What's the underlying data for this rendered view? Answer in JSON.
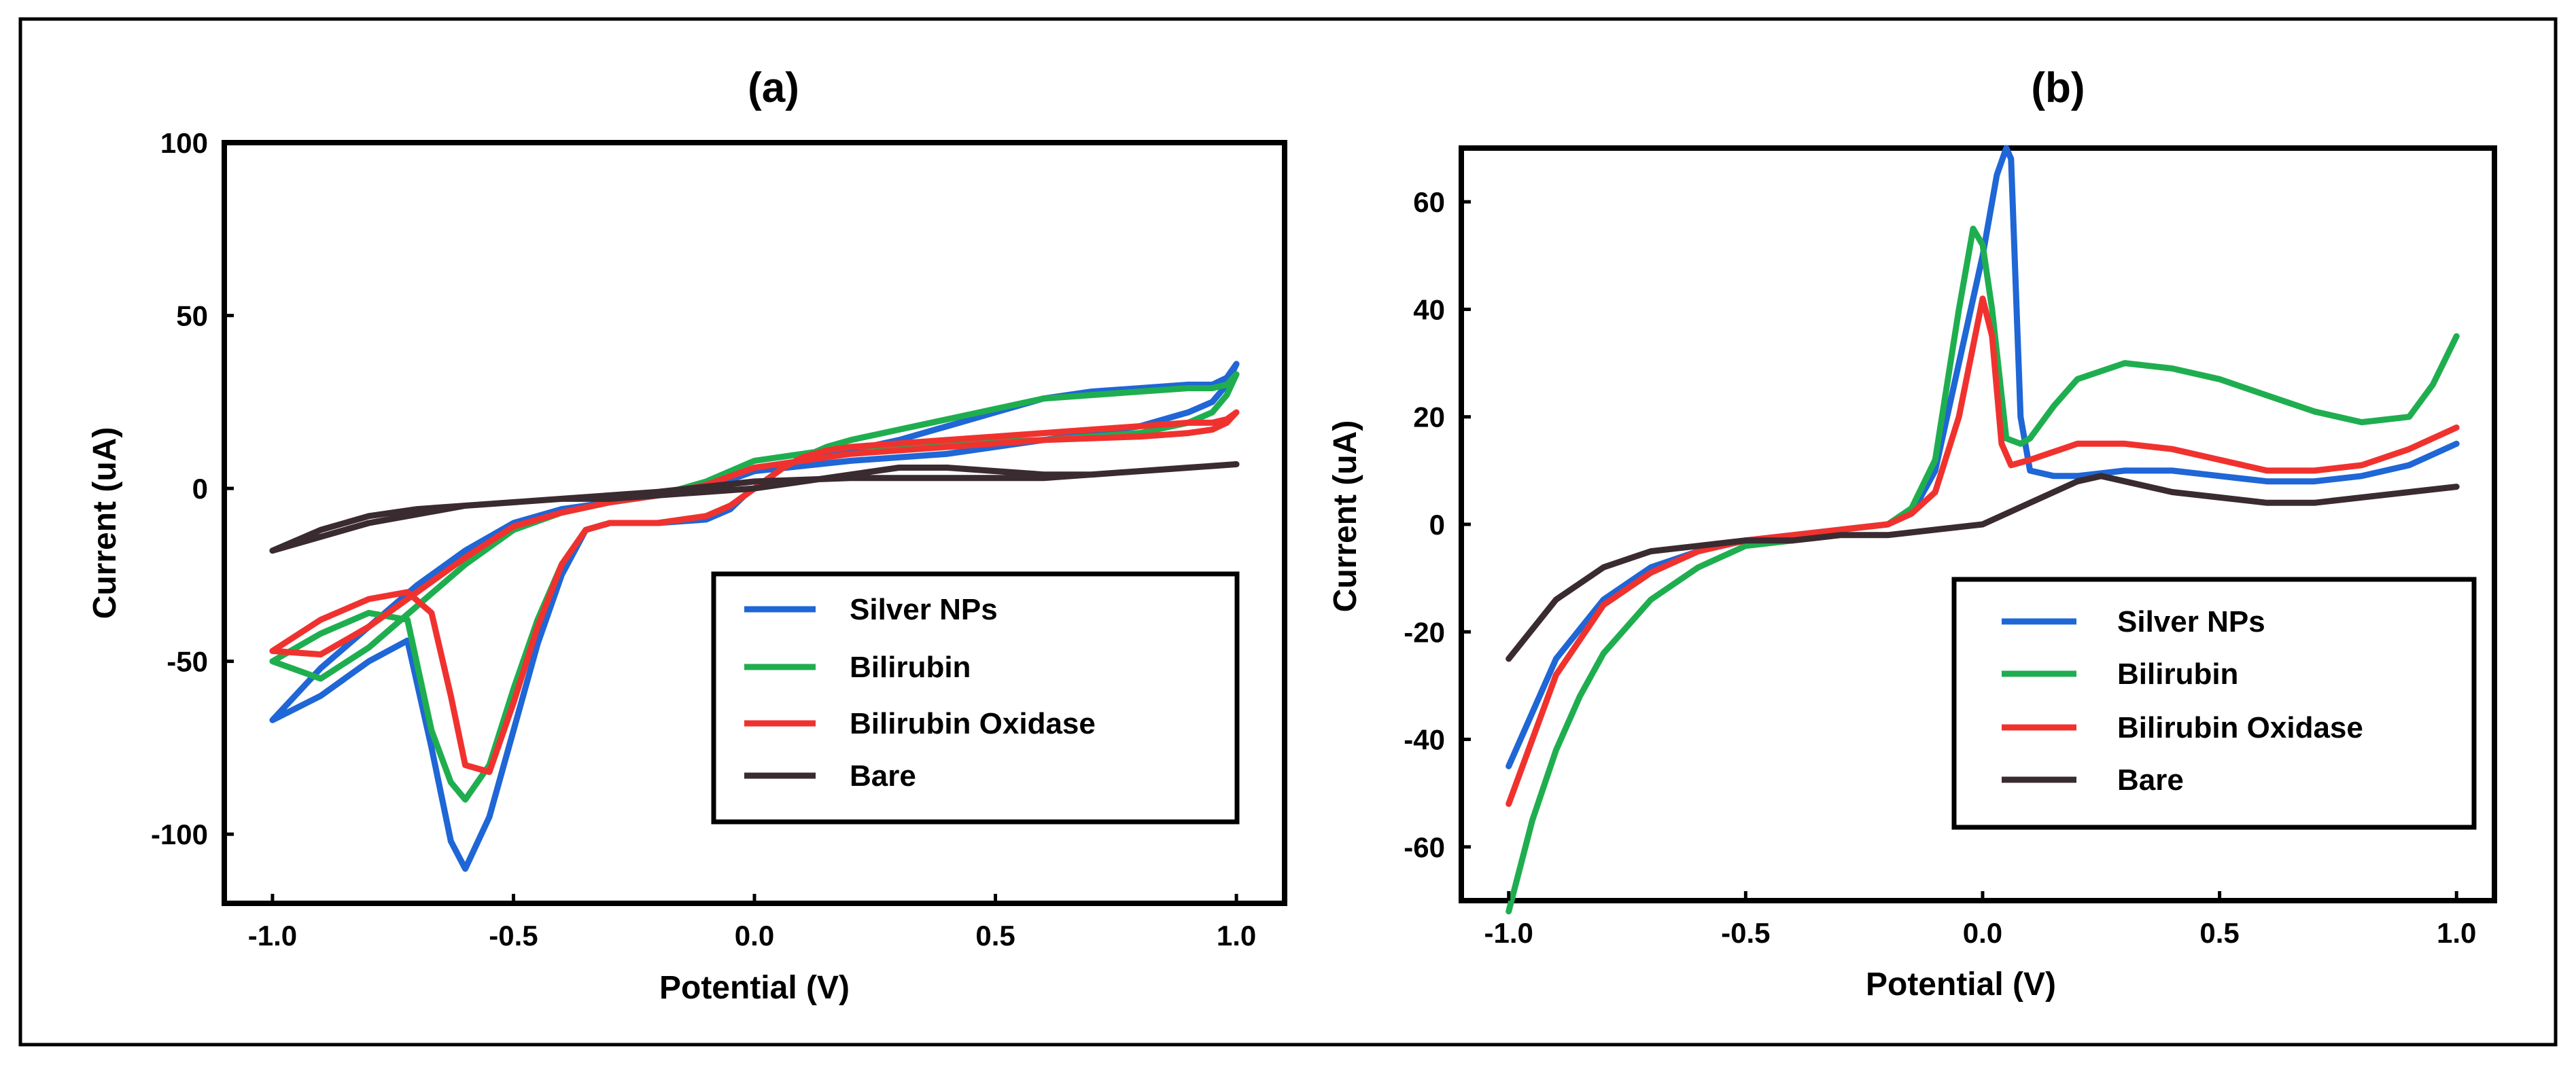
{
  "figure_border_color": "#000000",
  "chart_data": [
    {
      "type": "line",
      "panel": "a",
      "title": "(a)",
      "xlabel": "Potential (V)",
      "ylabel": "Current (uA)",
      "xlim": [
        -1.1,
        1.1
      ],
      "ylim": [
        -120,
        100
      ],
      "xticks": [
        -1.0,
        -0.5,
        0.0,
        0.5,
        1.0
      ],
      "xtick_labels": [
        "-1.0",
        "-0.5",
        "0.0",
        "0.5",
        "1.0"
      ],
      "yticks": [
        -100,
        -50,
        0,
        50,
        100
      ],
      "ytick_labels": [
        "-100",
        "-50",
        "0",
        "50",
        "100"
      ],
      "grid": false,
      "legend_position": "bottom-right",
      "series": [
        {
          "name": "Silver NPs",
          "color": "#1f66d6",
          "x": [
            -1.0,
            -0.9,
            -0.8,
            -0.72,
            -0.67,
            -0.63,
            -0.6,
            -0.55,
            -0.5,
            -0.45,
            -0.4,
            -0.35,
            -0.3,
            -0.2,
            -0.1,
            -0.05,
            -0.02,
            0.0,
            0.02,
            0.04,
            0.06,
            0.1,
            0.15,
            0.2,
            0.3,
            0.4,
            0.5,
            0.6,
            0.7,
            0.8,
            0.9,
            0.95,
            0.98,
            1.0,
            0.98,
            0.95,
            0.9,
            0.8,
            0.6,
            0.4,
            0.2,
            0.0,
            -0.1,
            -0.2,
            -0.3,
            -0.4,
            -0.5,
            -0.6,
            -0.7,
            -0.8,
            -0.9,
            -1.0
          ],
          "y": [
            -67,
            -60,
            -50,
            -44,
            -75,
            -102,
            -110,
            -95,
            -70,
            -45,
            -25,
            -12,
            -10,
            -10,
            -9,
            -6,
            -2,
            0,
            2,
            4,
            6,
            8,
            10,
            11,
            14,
            18,
            22,
            26,
            28,
            29,
            30,
            30,
            32,
            36,
            30,
            25,
            22,
            18,
            14,
            10,
            8,
            5,
            0,
            -2,
            -4,
            -6,
            -10,
            -18,
            -28,
            -40,
            -52,
            -67
          ]
        },
        {
          "name": "Bilirubin",
          "color": "#1fae4f",
          "x": [
            -1.0,
            -0.9,
            -0.8,
            -0.72,
            -0.67,
            -0.63,
            -0.6,
            -0.55,
            -0.5,
            -0.45,
            -0.4,
            -0.35,
            -0.3,
            -0.2,
            -0.1,
            -0.05,
            -0.02,
            0.0,
            0.02,
            0.04,
            0.06,
            0.1,
            0.15,
            0.2,
            0.3,
            0.4,
            0.5,
            0.6,
            0.7,
            0.8,
            0.9,
            0.95,
            0.98,
            1.0,
            0.98,
            0.95,
            0.9,
            0.8,
            0.6,
            0.4,
            0.2,
            0.0,
            -0.1,
            -0.2,
            -0.3,
            -0.4,
            -0.5,
            -0.6,
            -0.7,
            -0.8,
            -0.9,
            -1.0
          ],
          "y": [
            -50,
            -42,
            -36,
            -38,
            -70,
            -85,
            -90,
            -80,
            -58,
            -38,
            -22,
            -12,
            -10,
            -10,
            -8,
            -5,
            -2,
            0,
            2,
            4,
            6,
            9,
            12,
            14,
            17,
            20,
            23,
            26,
            27,
            28,
            29,
            29,
            30,
            33,
            27,
            22,
            19,
            16,
            14,
            13,
            12,
            8,
            2,
            -2,
            -4,
            -7,
            -12,
            -22,
            -34,
            -46,
            -55,
            -50
          ]
        },
        {
          "name": "Bilirubin Oxidase",
          "color": "#f0322f",
          "x": [
            -1.0,
            -0.9,
            -0.8,
            -0.72,
            -0.67,
            -0.63,
            -0.6,
            -0.55,
            -0.5,
            -0.45,
            -0.4,
            -0.35,
            -0.3,
            -0.2,
            -0.1,
            -0.05,
            -0.02,
            0.0,
            0.02,
            0.04,
            0.06,
            0.1,
            0.15,
            0.2,
            0.3,
            0.4,
            0.5,
            0.6,
            0.7,
            0.8,
            0.9,
            0.95,
            0.98,
            1.0,
            0.98,
            0.95,
            0.9,
            0.8,
            0.6,
            0.4,
            0.2,
            0.0,
            -0.1,
            -0.2,
            -0.3,
            -0.4,
            -0.5,
            -0.6,
            -0.7,
            -0.8,
            -0.9,
            -1.0
          ],
          "y": [
            -47,
            -38,
            -32,
            -30,
            -36,
            -60,
            -80,
            -82,
            -62,
            -40,
            -22,
            -12,
            -10,
            -10,
            -8,
            -5,
            -2,
            0,
            2,
            4,
            6,
            9,
            11,
            12,
            13,
            14,
            15,
            16,
            17,
            18,
            19,
            19,
            20,
            22,
            19,
            17,
            16,
            15,
            14,
            12,
            10,
            6,
            1,
            -2,
            -4,
            -7,
            -11,
            -20,
            -30,
            -40,
            -48,
            -47
          ]
        },
        {
          "name": "Bare",
          "color": "#3a2b30",
          "x": [
            -1.0,
            -0.9,
            -0.8,
            -0.7,
            -0.6,
            -0.5,
            -0.4,
            -0.3,
            -0.2,
            -0.1,
            0.0,
            0.1,
            0.2,
            0.3,
            0.4,
            0.5,
            0.6,
            0.7,
            0.8,
            0.9,
            1.0,
            0.8,
            0.6,
            0.4,
            0.2,
            0.0,
            -0.2,
            -0.4,
            -0.6,
            -0.8,
            -1.0
          ],
          "y": [
            -18,
            -12,
            -8,
            -6,
            -5,
            -4,
            -3,
            -3,
            -2,
            -1,
            0,
            2,
            4,
            6,
            6,
            5,
            4,
            4,
            5,
            6,
            7,
            5,
            3,
            3,
            3,
            2,
            -1,
            -3,
            -5,
            -10,
            -18
          ]
        }
      ],
      "legend_entries": [
        "Silver NPs",
        "Bilirubin",
        "Bilirubin Oxidase",
        "Bare"
      ]
    },
    {
      "type": "line",
      "panel": "b",
      "title": "(b)",
      "xlabel": "Potential (V)",
      "ylabel": "Current (uA)",
      "xlim": [
        -1.1,
        1.08
      ],
      "ylim": [
        -70,
        70
      ],
      "xticks": [
        -1.0,
        -0.5,
        0.0,
        0.5,
        1.0
      ],
      "xtick_labels": [
        "-1.0",
        "-0.5",
        "0.0",
        "0.5",
        "1.0"
      ],
      "yticks": [
        -60,
        -40,
        -20,
        0,
        20,
        40,
        60
      ],
      "ytick_labels": [
        "-60",
        "-40",
        "-20",
        "0",
        "20",
        "40",
        "60"
      ],
      "grid": false,
      "legend_position": "bottom-right",
      "series": [
        {
          "name": "Silver NPs",
          "color": "#1f66d6",
          "x": [
            -1.0,
            -0.9,
            -0.8,
            -0.7,
            -0.6,
            -0.5,
            -0.4,
            -0.3,
            -0.2,
            -0.15,
            -0.1,
            -0.05,
            0.0,
            0.03,
            0.05,
            0.06,
            0.08,
            0.1,
            0.15,
            0.2,
            0.3,
            0.4,
            0.5,
            0.6,
            0.7,
            0.8,
            0.9,
            1.0
          ],
          "y": [
            -45,
            -25,
            -14,
            -8,
            -5,
            -3,
            -2,
            -1,
            0,
            2,
            10,
            30,
            50,
            65,
            70,
            68,
            20,
            10,
            9,
            9,
            10,
            10,
            9,
            8,
            8,
            9,
            11,
            15
          ]
        },
        {
          "name": "Bilirubin",
          "color": "#1fae4f",
          "x": [
            -1.0,
            -0.95,
            -0.9,
            -0.85,
            -0.8,
            -0.7,
            -0.6,
            -0.5,
            -0.4,
            -0.3,
            -0.2,
            -0.15,
            -0.1,
            -0.05,
            -0.02,
            0.0,
            0.02,
            0.05,
            0.08,
            0.1,
            0.15,
            0.2,
            0.3,
            0.4,
            0.5,
            0.6,
            0.7,
            0.8,
            0.9,
            0.95,
            1.0
          ],
          "y": [
            -72,
            -55,
            -42,
            -32,
            -24,
            -14,
            -8,
            -4,
            -3,
            -1,
            0,
            3,
            12,
            40,
            55,
            52,
            40,
            16,
            15,
            16,
            22,
            27,
            30,
            29,
            27,
            24,
            21,
            19,
            20,
            26,
            35
          ]
        },
        {
          "name": "Bilirubin Oxidase",
          "color": "#f0322f",
          "x": [
            -1.0,
            -0.9,
            -0.8,
            -0.7,
            -0.6,
            -0.5,
            -0.4,
            -0.3,
            -0.2,
            -0.15,
            -0.1,
            -0.05,
            0.0,
            0.02,
            0.04,
            0.06,
            0.1,
            0.2,
            0.3,
            0.4,
            0.5,
            0.6,
            0.7,
            0.8,
            0.9,
            1.0
          ],
          "y": [
            -52,
            -28,
            -15,
            -9,
            -5,
            -3,
            -2,
            -1,
            0,
            2,
            6,
            20,
            42,
            35,
            15,
            11,
            12,
            15,
            15,
            14,
            12,
            10,
            10,
            11,
            14,
            18
          ]
        },
        {
          "name": "Bare",
          "color": "#3a2b30",
          "x": [
            -1.0,
            -0.9,
            -0.8,
            -0.7,
            -0.6,
            -0.5,
            -0.4,
            -0.3,
            -0.2,
            -0.1,
            0.0,
            0.1,
            0.2,
            0.25,
            0.3,
            0.4,
            0.5,
            0.6,
            0.7,
            0.8,
            0.9,
            1.0
          ],
          "y": [
            -25,
            -14,
            -8,
            -5,
            -4,
            -3,
            -3,
            -2,
            -2,
            -1,
            0,
            4,
            8,
            9,
            8,
            6,
            5,
            4,
            4,
            5,
            6,
            7
          ]
        }
      ],
      "legend_entries": [
        "Silver NPs",
        "Bilirubin",
        "Bilirubin Oxidase",
        "Bare"
      ]
    }
  ]
}
